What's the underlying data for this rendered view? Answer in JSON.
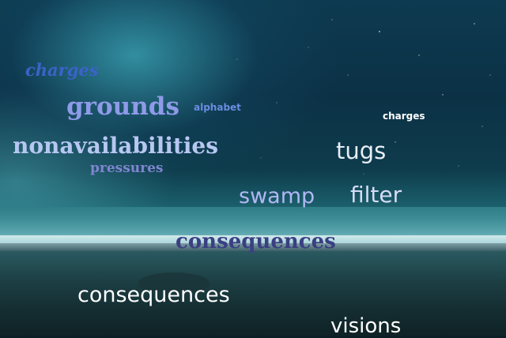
{
  "words": [
    {
      "text": "charges",
      "color": "#3b63c7"
    },
    {
      "text": "grounds",
      "color": "#8f9ae8"
    },
    {
      "text": "alphabet",
      "color": "#6a8ddf"
    },
    {
      "text": "charges",
      "color": "#ffffff"
    },
    {
      "text": "nonavailabilities",
      "color": "#b7c7f2"
    },
    {
      "text": "tugs",
      "color": "#e6eef6"
    },
    {
      "text": "pressures",
      "color": "#7f86d0"
    },
    {
      "text": "swamp",
      "color": "#b0b8f4"
    },
    {
      "text": "filter",
      "color": "#d6dcf5"
    },
    {
      "text": "consequences",
      "color": "#3b3f82"
    },
    {
      "text": "consequences",
      "color": "#ffffff"
    },
    {
      "text": "visions",
      "color": "#ffffff"
    }
  ]
}
